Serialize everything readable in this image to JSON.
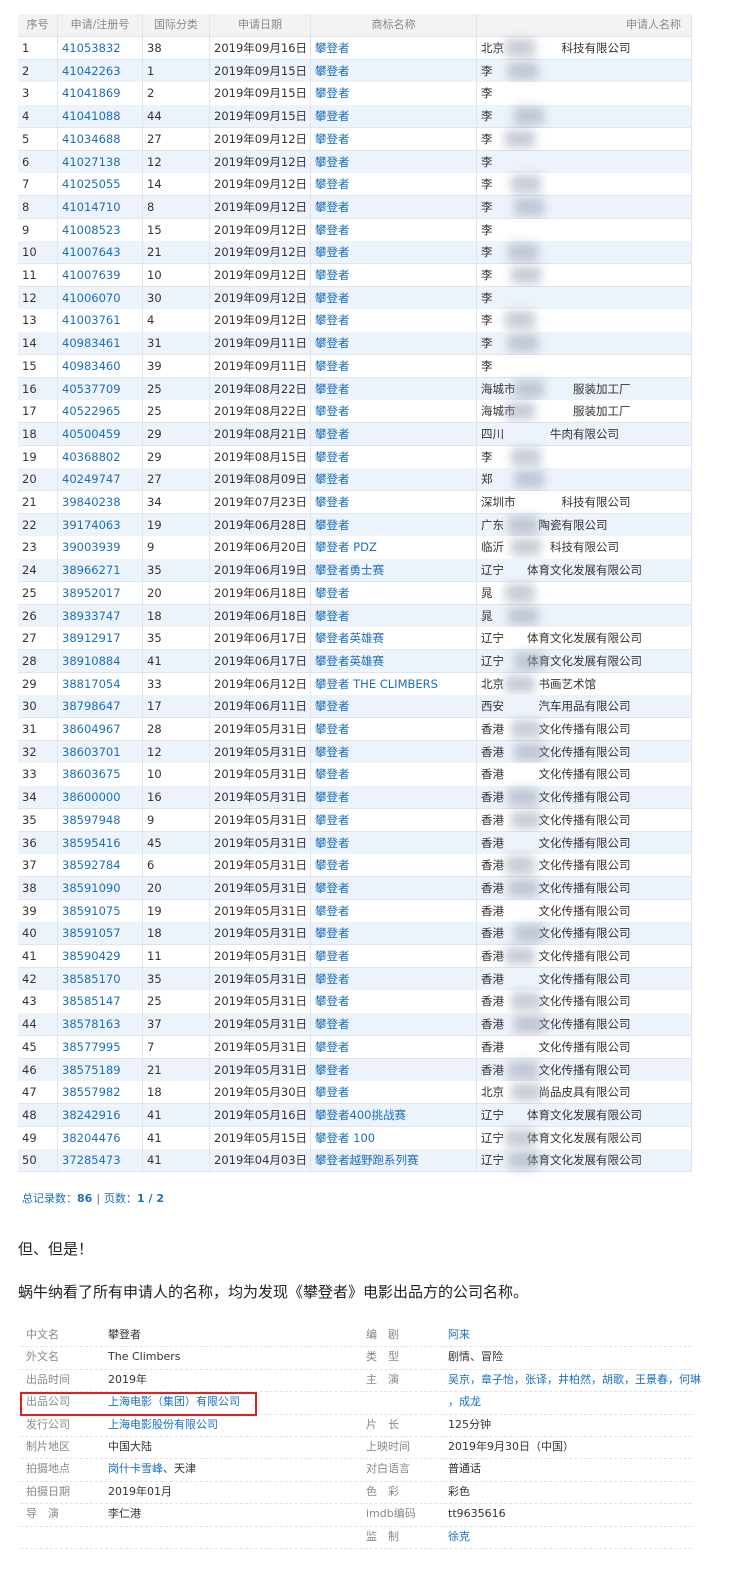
{
  "table": {
    "headers": [
      "序号",
      "申请/注册号",
      "国际分类",
      "申请日期",
      "商标名称",
      "申请人名称"
    ],
    "rows": [
      [
        "1",
        "41053832",
        "38",
        "2019年09月16日",
        "攀登者",
        "北京　　　　　科技有限公司"
      ],
      [
        "2",
        "41042263",
        "1",
        "2019年09月15日",
        "攀登者",
        "李"
      ],
      [
        "3",
        "41041869",
        "2",
        "2019年09月15日",
        "攀登者",
        "李"
      ],
      [
        "4",
        "41041088",
        "44",
        "2019年09月15日",
        "攀登者",
        "李"
      ],
      [
        "5",
        "41034688",
        "27",
        "2019年09月12日",
        "攀登者",
        "李"
      ],
      [
        "6",
        "41027138",
        "12",
        "2019年09月12日",
        "攀登者",
        "李"
      ],
      [
        "7",
        "41025055",
        "14",
        "2019年09月12日",
        "攀登者",
        "李"
      ],
      [
        "8",
        "41014710",
        "8",
        "2019年09月12日",
        "攀登者",
        "李"
      ],
      [
        "9",
        "41008523",
        "15",
        "2019年09月12日",
        "攀登者",
        "李"
      ],
      [
        "10",
        "41007643",
        "21",
        "2019年09月12日",
        "攀登者",
        "李"
      ],
      [
        "11",
        "41007639",
        "10",
        "2019年09月12日",
        "攀登者",
        "李"
      ],
      [
        "12",
        "41006070",
        "30",
        "2019年09月12日",
        "攀登者",
        "李"
      ],
      [
        "13",
        "41003761",
        "4",
        "2019年09月12日",
        "攀登者",
        "李"
      ],
      [
        "14",
        "40983461",
        "31",
        "2019年09月11日",
        "攀登者",
        "李"
      ],
      [
        "15",
        "40983460",
        "39",
        "2019年09月11日",
        "攀登者",
        "李"
      ],
      [
        "16",
        "40537709",
        "25",
        "2019年08月22日",
        "攀登者",
        "海城市　　　　　服装加工厂"
      ],
      [
        "17",
        "40522965",
        "25",
        "2019年08月22日",
        "攀登者",
        "海城市　　　　　服装加工厂"
      ],
      [
        "18",
        "40500459",
        "29",
        "2019年08月21日",
        "攀登者",
        "四川　　　　牛肉有限公司"
      ],
      [
        "19",
        "40368802",
        "29",
        "2019年08月15日",
        "攀登者",
        "李"
      ],
      [
        "20",
        "40249747",
        "27",
        "2019年08月09日",
        "攀登者",
        "郑"
      ],
      [
        "21",
        "39840238",
        "34",
        "2019年07月23日",
        "攀登者",
        "深圳市　　　　科技有限公司"
      ],
      [
        "22",
        "39174063",
        "19",
        "2019年06月28日",
        "攀登者",
        "广东　　　陶瓷有限公司"
      ],
      [
        "23",
        "39003939",
        "9",
        "2019年06月20日",
        "攀登者 PDZ",
        "临沂　　　　科技有限公司"
      ],
      [
        "24",
        "38966271",
        "35",
        "2019年06月19日",
        "攀登者勇士赛",
        "辽宁　　体育文化发展有限公司"
      ],
      [
        "25",
        "38952017",
        "20",
        "2019年06月18日",
        "攀登者",
        "晁"
      ],
      [
        "26",
        "38933747",
        "18",
        "2019年06月18日",
        "攀登者",
        "晁"
      ],
      [
        "27",
        "38912917",
        "35",
        "2019年06月17日",
        "攀登者英雄赛",
        "辽宁　　体育文化发展有限公司"
      ],
      [
        "28",
        "38910884",
        "41",
        "2019年06月17日",
        "攀登者英雄赛",
        "辽宁　　体育文化发展有限公司"
      ],
      [
        "29",
        "38817054",
        "33",
        "2019年06月12日",
        "攀登者 THE CLIMBERS",
        "北京　　　书画艺术馆"
      ],
      [
        "30",
        "38798647",
        "17",
        "2019年06月11日",
        "攀登者",
        "西安　　　汽车用品有限公司"
      ],
      [
        "31",
        "38604967",
        "28",
        "2019年05月31日",
        "攀登者",
        "香港　　　文化传播有限公司"
      ],
      [
        "32",
        "38603701",
        "12",
        "2019年05月31日",
        "攀登者",
        "香港　　　文化传播有限公司"
      ],
      [
        "33",
        "38603675",
        "10",
        "2019年05月31日",
        "攀登者",
        "香港　　　文化传播有限公司"
      ],
      [
        "34",
        "38600000",
        "16",
        "2019年05月31日",
        "攀登者",
        "香港　　　文化传播有限公司"
      ],
      [
        "35",
        "38597948",
        "9",
        "2019年05月31日",
        "攀登者",
        "香港　　　文化传播有限公司"
      ],
      [
        "36",
        "38595416",
        "45",
        "2019年05月31日",
        "攀登者",
        "香港　　　文化传播有限公司"
      ],
      [
        "37",
        "38592784",
        "6",
        "2019年05月31日",
        "攀登者",
        "香港　　　文化传播有限公司"
      ],
      [
        "38",
        "38591090",
        "20",
        "2019年05月31日",
        "攀登者",
        "香港　　　文化传播有限公司"
      ],
      [
        "39",
        "38591075",
        "19",
        "2019年05月31日",
        "攀登者",
        "香港　　　文化传播有限公司"
      ],
      [
        "40",
        "38591057",
        "18",
        "2019年05月31日",
        "攀登者",
        "香港　　　文化传播有限公司"
      ],
      [
        "41",
        "38590429",
        "11",
        "2019年05月31日",
        "攀登者",
        "香港　　　文化传播有限公司"
      ],
      [
        "42",
        "38585170",
        "35",
        "2019年05月31日",
        "攀登者",
        "香港　　　文化传播有限公司"
      ],
      [
        "43",
        "38585147",
        "25",
        "2019年05月31日",
        "攀登者",
        "香港　　　文化传播有限公司"
      ],
      [
        "44",
        "38578163",
        "37",
        "2019年05月31日",
        "攀登者",
        "香港　　　文化传播有限公司"
      ],
      [
        "45",
        "38577995",
        "7",
        "2019年05月31日",
        "攀登者",
        "香港　　　文化传播有限公司"
      ],
      [
        "46",
        "38575189",
        "21",
        "2019年05月31日",
        "攀登者",
        "香港　　　文化传播有限公司"
      ],
      [
        "47",
        "38557982",
        "18",
        "2019年05月30日",
        "攀登者",
        "北京　　　尚品皮具有限公司"
      ],
      [
        "48",
        "38242916",
        "41",
        "2019年05月16日",
        "攀登者400挑战赛",
        "辽宁　　体育文化发展有限公司"
      ],
      [
        "49",
        "38204476",
        "41",
        "2019年05月15日",
        "攀登者 100",
        "辽宁　　体育文化发展有限公司"
      ],
      [
        "50",
        "37285473",
        "41",
        "2019年04月03日",
        "攀登者越野跑系列赛",
        "辽宁　　体育文化发展有限公司"
      ]
    ]
  },
  "pagination": {
    "total_label": "总记录数：",
    "total": "86",
    "separator": "|",
    "pages_label": "页数：",
    "pages": "1 / 2"
  },
  "paragraphs": [
    "但、但是！",
    "蜗牛纳看了所有申请人的名称，均为发现《攀登者》电影出品方的公司名称。"
  ],
  "info": {
    "left": [
      {
        "label": "中文名",
        "value": "攀登者"
      },
      {
        "label": "外文名",
        "value": "The Climbers"
      },
      {
        "label": "出品时间",
        "value": "2019年"
      },
      {
        "label": "出品公司",
        "value": "上海电影（集团）有限公司",
        "link": true
      },
      {
        "label": "发行公司",
        "value": "上海电影股份有限公司",
        "link": true
      },
      {
        "label": "制片地区",
        "value": "中国大陆"
      },
      {
        "label": "拍摄地点",
        "value": "岗什卡雪峰",
        "link": true,
        "extra": "、天津"
      },
      {
        "label": "拍摄日期",
        "value": "2019年01月"
      },
      {
        "label": "导　演",
        "value": "李仁港"
      }
    ],
    "right": [
      {
        "label": "编　剧",
        "value": "阿来",
        "link": true
      },
      {
        "label": "类　型",
        "value": "剧情、冒险"
      },
      {
        "label": "主　演",
        "value": "吴京，章子怡，张译，井柏然，胡歌，王景春，何琳",
        "link": true
      },
      {
        "value": "，成龙",
        "link": true
      },
      {
        "label": "片　长",
        "value": "125分钟"
      },
      {
        "label": "上映时间",
        "value": "2019年9月30日（中国）"
      },
      {
        "label": "对白语言",
        "value": "普通话"
      },
      {
        "label": "色　彩",
        "value": "彩色"
      },
      {
        "label": "imdb编码",
        "value": "tt9635616"
      },
      {
        "label": "监　制",
        "value": "徐克",
        "link": true
      }
    ]
  }
}
